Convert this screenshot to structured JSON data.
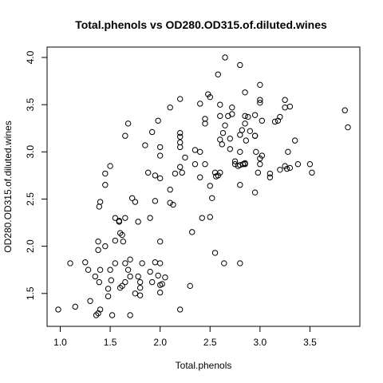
{
  "chart_data": {
    "type": "scatter",
    "title": "Total.phenols vs OD280.OD315.of.diluted.wines",
    "xlabel": "Total.phenols",
    "ylabel": "OD280.OD315.of.diluted.wines",
    "xlim": [
      0.98,
      3.88
    ],
    "ylim": [
      1.27,
      4.0
    ],
    "xticks": [
      1.0,
      1.5,
      2.0,
      2.5,
      3.0,
      3.5
    ],
    "xtick_labels": [
      "1.0",
      "1.5",
      "2.0",
      "2.5",
      "3.0",
      "3.5"
    ],
    "yticks": [
      1.5,
      2.0,
      2.5,
      3.0,
      3.5,
      4.0
    ],
    "ytick_labels": [
      "1.5",
      "2.0",
      "2.5",
      "3.0",
      "3.5",
      "4.0"
    ],
    "grid": false,
    "legend": "none",
    "series": [
      {
        "points": [
          [
            0.98,
            1.33
          ],
          [
            1.1,
            1.82
          ],
          [
            1.15,
            1.36
          ],
          [
            1.25,
            1.83
          ],
          [
            1.28,
            1.75
          ],
          [
            1.3,
            1.42
          ],
          [
            1.35,
            1.68
          ],
          [
            1.36,
            1.27
          ],
          [
            1.38,
            1.29
          ],
          [
            1.38,
            1.96
          ],
          [
            1.38,
            2.05
          ],
          [
            1.39,
            1.62
          ],
          [
            1.39,
            2.42
          ],
          [
            1.4,
            1.33
          ],
          [
            1.4,
            1.75
          ],
          [
            1.4,
            2.47
          ],
          [
            1.45,
            2.0
          ],
          [
            1.45,
            2.65
          ],
          [
            1.45,
            2.77
          ],
          [
            1.48,
            1.55
          ],
          [
            1.48,
            1.47
          ],
          [
            1.5,
            1.75
          ],
          [
            1.5,
            2.85
          ],
          [
            1.51,
            1.64
          ],
          [
            1.52,
            1.27
          ],
          [
            1.55,
            1.82
          ],
          [
            1.55,
            2.3
          ],
          [
            1.55,
            2.06
          ],
          [
            1.59,
            2.26
          ],
          [
            1.59,
            2.27
          ],
          [
            1.6,
            1.56
          ],
          [
            1.6,
            2.14
          ],
          [
            1.62,
            2.12
          ],
          [
            1.62,
            1.58
          ],
          [
            1.63,
            2.05
          ],
          [
            1.65,
            1.62
          ],
          [
            1.65,
            1.82
          ],
          [
            1.65,
            2.3
          ],
          [
            1.65,
            3.17
          ],
          [
            1.68,
            3.3
          ],
          [
            1.68,
            1.75
          ],
          [
            1.7,
            1.86
          ],
          [
            1.7,
            1.68
          ],
          [
            1.7,
            1.27
          ],
          [
            1.72,
            2.51
          ],
          [
            1.75,
            2.47
          ],
          [
            1.75,
            1.5
          ],
          [
            1.78,
            1.68
          ],
          [
            1.78,
            2.26
          ],
          [
            1.8,
            1.62
          ],
          [
            1.8,
            1.56
          ],
          [
            1.8,
            1.48
          ],
          [
            1.82,
            1.82
          ],
          [
            1.85,
            3.07
          ],
          [
            1.88,
            2.78
          ],
          [
            1.9,
            2.3
          ],
          [
            1.9,
            1.73
          ],
          [
            1.92,
            3.21
          ],
          [
            1.92,
            1.62
          ],
          [
            1.95,
            2.48
          ],
          [
            1.95,
            2.75
          ],
          [
            1.95,
            1.83
          ],
          [
            1.98,
            1.69
          ],
          [
            1.98,
            3.33
          ],
          [
            2.0,
            3.05
          ],
          [
            2.0,
            2.72
          ],
          [
            2.0,
            2.05
          ],
          [
            2.0,
            1.82
          ],
          [
            2.0,
            2.96
          ],
          [
            2.0,
            1.59
          ],
          [
            2.0,
            1.51
          ],
          [
            2.02,
            1.6
          ],
          [
            2.05,
            1.67
          ],
          [
            2.1,
            2.6
          ],
          [
            2.1,
            3.47
          ],
          [
            2.1,
            2.46
          ],
          [
            2.13,
            2.44
          ],
          [
            2.15,
            2.77
          ],
          [
            2.2,
            3.2
          ],
          [
            2.2,
            3.16
          ],
          [
            2.2,
            1.33
          ],
          [
            2.2,
            2.84
          ],
          [
            2.2,
            3.1
          ],
          [
            2.2,
            3.56
          ],
          [
            2.2,
            3.05
          ],
          [
            2.22,
            2.78
          ],
          [
            2.25,
            2.94
          ],
          [
            2.3,
            1.58
          ],
          [
            2.32,
            2.15
          ],
          [
            2.35,
            3.02
          ],
          [
            2.35,
            2.87
          ],
          [
            2.4,
            3.51
          ],
          [
            2.4,
            2.73
          ],
          [
            2.4,
            3.0
          ],
          [
            2.42,
            2.3
          ],
          [
            2.45,
            2.87
          ],
          [
            2.45,
            3.35
          ],
          [
            2.45,
            3.3
          ],
          [
            2.48,
            3.61
          ],
          [
            2.5,
            2.31
          ],
          [
            2.5,
            2.64
          ],
          [
            2.5,
            3.58
          ],
          [
            2.52,
            2.51
          ],
          [
            2.55,
            1.93
          ],
          [
            2.55,
            2.78
          ],
          [
            2.56,
            2.74
          ],
          [
            2.58,
            2.75
          ],
          [
            2.58,
            3.82
          ],
          [
            2.6,
            3.13
          ],
          [
            2.6,
            3.38
          ],
          [
            2.6,
            2.78
          ],
          [
            2.6,
            3.5
          ],
          [
            2.62,
            3.08
          ],
          [
            2.63,
            3.2
          ],
          [
            2.64,
            1.82
          ],
          [
            2.65,
            3.28
          ],
          [
            2.65,
            4.0
          ],
          [
            2.68,
            3.38
          ],
          [
            2.7,
            3.14
          ],
          [
            2.7,
            3.03
          ],
          [
            2.72,
            3.4
          ],
          [
            2.72,
            3.47
          ],
          [
            2.75,
            2.9
          ],
          [
            2.75,
            2.87
          ],
          [
            2.78,
            2.85
          ],
          [
            2.8,
            3.92
          ],
          [
            2.8,
            2.65
          ],
          [
            2.8,
            2.86
          ],
          [
            2.8,
            3.18
          ],
          [
            2.8,
            3.0
          ],
          [
            2.8,
            1.82
          ],
          [
            2.82,
            3.23
          ],
          [
            2.83,
            2.87
          ],
          [
            2.85,
            3.38
          ],
          [
            2.85,
            2.87
          ],
          [
            2.85,
            3.3
          ],
          [
            2.85,
            2.88
          ],
          [
            2.85,
            3.63
          ],
          [
            2.86,
            3.12
          ],
          [
            2.88,
            3.37
          ],
          [
            2.9,
            3.22
          ],
          [
            2.95,
            3.17
          ],
          [
            2.95,
            2.57
          ],
          [
            2.95,
            3.17
          ],
          [
            2.95,
            3.39
          ],
          [
            2.96,
            3.0
          ],
          [
            2.98,
            2.78
          ],
          [
            3.0,
            3.55
          ],
          [
            3.0,
            2.93
          ],
          [
            3.0,
            2.87
          ],
          [
            3.0,
            3.52
          ],
          [
            3.0,
            3.71
          ],
          [
            3.02,
            2.96
          ],
          [
            3.02,
            3.33
          ],
          [
            3.1,
            2.77
          ],
          [
            3.1,
            2.73
          ],
          [
            3.15,
            3.32
          ],
          [
            3.18,
            3.33
          ],
          [
            3.2,
            3.37
          ],
          [
            3.2,
            2.81
          ],
          [
            3.25,
            2.85
          ],
          [
            3.25,
            3.47
          ],
          [
            3.25,
            3.55
          ],
          [
            3.27,
            2.82
          ],
          [
            3.28,
            3.0
          ],
          [
            3.3,
            3.48
          ],
          [
            3.3,
            2.83
          ],
          [
            3.35,
            3.12
          ],
          [
            3.38,
            2.87
          ],
          [
            3.5,
            2.87
          ],
          [
            3.52,
            2.78
          ],
          [
            3.85,
            3.44
          ],
          [
            3.88,
            3.26
          ]
        ]
      }
    ]
  }
}
